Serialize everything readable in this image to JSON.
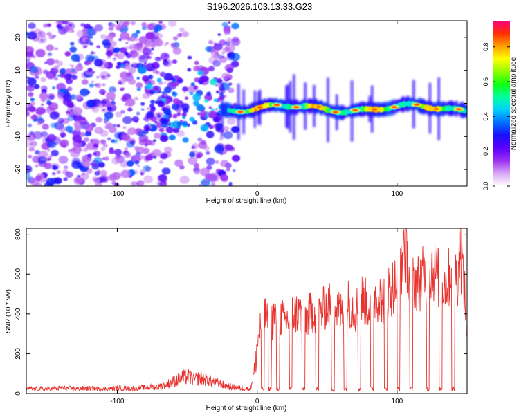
{
  "page_title": "S196.2026.103.13.33.G23",
  "colors": {
    "snr_line": "#e8322e",
    "axis": "#000000"
  },
  "chart_data": [
    {
      "type": "heatmap",
      "name": "spectrogram",
      "xlabel": "Height of straight line (km)",
      "ylabel": "Frequency (Hz)",
      "xlim": [
        -165,
        150
      ],
      "ylim": [
        -25,
        25
      ],
      "xticks": [
        -100,
        0,
        100
      ],
      "xtick_labels": [
        "-100",
        "0",
        "100"
      ],
      "yticks": [
        -20,
        -10,
        0,
        10,
        20
      ],
      "ytick_labels": [
        "-20",
        "-10",
        "0",
        "10",
        "20"
      ],
      "colorbar": {
        "label": "Normalized spectral amplitude",
        "range": [
          0,
          0.95
        ],
        "ticks": [
          0.0,
          0.2,
          0.4,
          0.6,
          0.8
        ],
        "tick_labels": [
          "0.0",
          "0.2",
          "0.4",
          "0.6",
          "0.8"
        ],
        "colormap": [
          "#ffffff",
          "#d9a7f5",
          "#9b30f0",
          "#5a00ff",
          "#1a10ff",
          "#0070ff",
          "#00d0ff",
          "#00ffa0",
          "#10ff10",
          "#90ff00",
          "#ffff00",
          "#ffa000",
          "#ff3000",
          "#ff0080"
        ]
      },
      "features": {
        "noise_region_km": [
          -165,
          -25
        ],
        "signal_band_km": [
          -25,
          150
        ],
        "signal_freq_hz": [
          -4,
          1
        ],
        "signal_peak_amplitude": 0.92
      }
    },
    {
      "type": "line",
      "name": "snr",
      "xlabel": "Height of straight line (km)",
      "ylabel": "SNR (10 * v/v)",
      "xlim": [
        -165,
        150
      ],
      "ylim": [
        0,
        830
      ],
      "xticks": [
        -100,
        0,
        100
      ],
      "xtick_labels": [
        "-100",
        "0",
        "100"
      ],
      "yticks": [
        0,
        200,
        400,
        600,
        800
      ],
      "ytick_labels": [
        "0",
        "200",
        "400",
        "600",
        "800"
      ],
      "series": [
        {
          "name": "SNR",
          "x": [
            -165,
            -150,
            -140,
            -130,
            -120,
            -110,
            -100,
            -90,
            -80,
            -70,
            -65,
            -60,
            -55,
            -50,
            -45,
            -40,
            -35,
            -30,
            -25,
            -20,
            -15,
            -10,
            -5,
            -2,
            0,
            2,
            4,
            6,
            8,
            10,
            12,
            14,
            16,
            18,
            20,
            25,
            30,
            35,
            40,
            45,
            50,
            55,
            60,
            65,
            70,
            75,
            80,
            85,
            90,
            95,
            100,
            103,
            105,
            108,
            110,
            115,
            120,
            125,
            130,
            135,
            140,
            143,
            145,
            148,
            150
          ],
          "y": [
            25,
            22,
            28,
            24,
            26,
            23,
            27,
            25,
            30,
            35,
            45,
            60,
            75,
            85,
            70,
            80,
            65,
            55,
            45,
            35,
            30,
            25,
            25,
            110,
            240,
            330,
            370,
            390,
            340,
            350,
            400,
            370,
            390,
            380,
            360,
            400,
            410,
            380,
            420,
            400,
            450,
            430,
            410,
            460,
            420,
            480,
            440,
            500,
            470,
            530,
            560,
            600,
            780,
            620,
            580,
            560,
            600,
            640,
            580,
            560,
            620,
            580,
            760,
            520,
            300
          ],
          "dips_x": [
            4,
            9,
            15,
            24,
            33,
            43,
            54,
            63,
            73,
            82,
            92,
            101,
            110,
            122,
            131,
            140
          ]
        }
      ]
    }
  ]
}
